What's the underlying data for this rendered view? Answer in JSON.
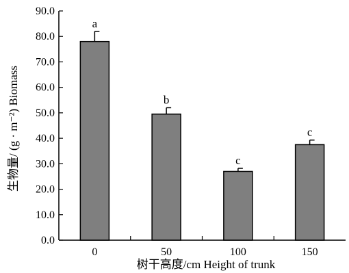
{
  "chart_data": {
    "type": "bar",
    "categories": [
      "0",
      "50",
      "100",
      "150"
    ],
    "values": [
      78.0,
      49.5,
      27.0,
      37.5
    ],
    "errors": [
      4.0,
      2.5,
      1.2,
      1.8
    ],
    "significance": [
      "a",
      "b",
      "c",
      "c"
    ],
    "ylim": [
      0,
      90
    ],
    "yticks": [
      "0.0",
      "10.0",
      "20.0",
      "30.0",
      "40.0",
      "50.0",
      "60.0",
      "70.0",
      "80.0",
      "90.0"
    ],
    "xlabel": "树干高度/cm   Height of trunk",
    "ylabel": "生物量/ (g · m⁻²)    Biomass",
    "colors": {
      "bar": "#7f7f7f",
      "axis": "#000000"
    },
    "grid": false
  }
}
